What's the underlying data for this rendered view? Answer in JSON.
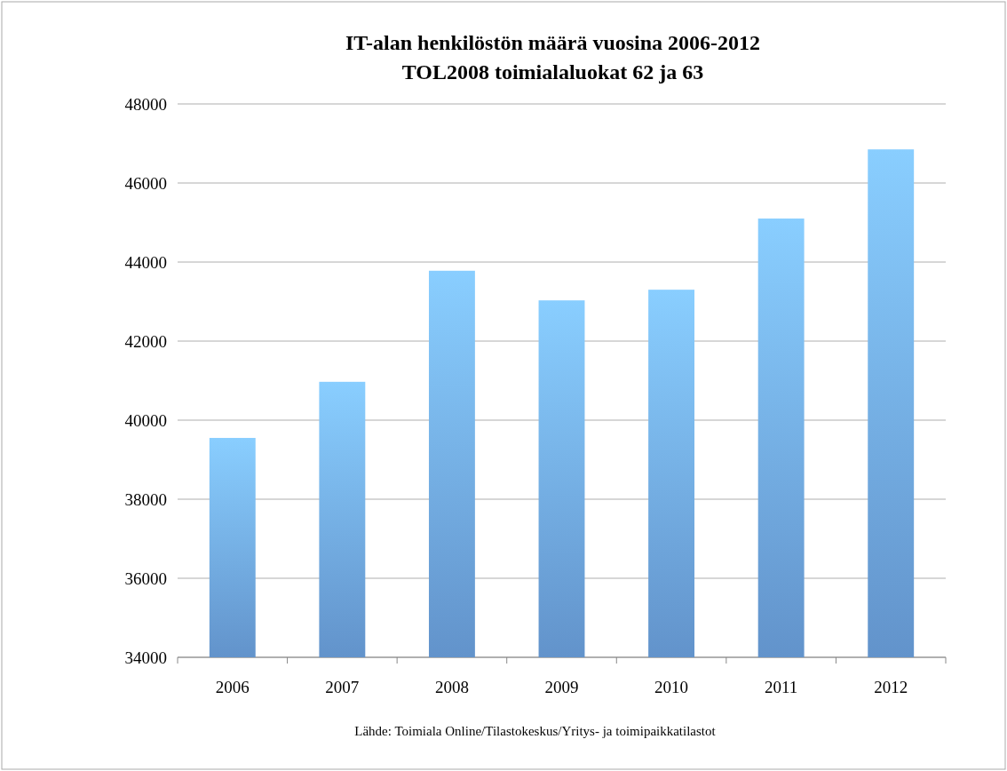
{
  "chart_data": {
    "type": "bar",
    "title": "IT-alan henkilöstön määrä vuosina 2006-2012",
    "subtitle": "TOL2008 toimialaluokat 62 ja 63",
    "categories": [
      "2006",
      "2007",
      "2008",
      "2009",
      "2010",
      "2011",
      "2012"
    ],
    "values": [
      39550,
      40970,
      43780,
      43030,
      43300,
      45100,
      46850
    ],
    "color": "#6fa6e6",
    "ylim": [
      34000,
      48000
    ],
    "yticks": [
      34000,
      36000,
      38000,
      40000,
      42000,
      44000,
      46000,
      48000
    ],
    "grid": "y",
    "annotations": [
      "Lähde: Toimiala Online/Tilastokeskus/Yritys- ja toimipaikkatilastot"
    ]
  }
}
